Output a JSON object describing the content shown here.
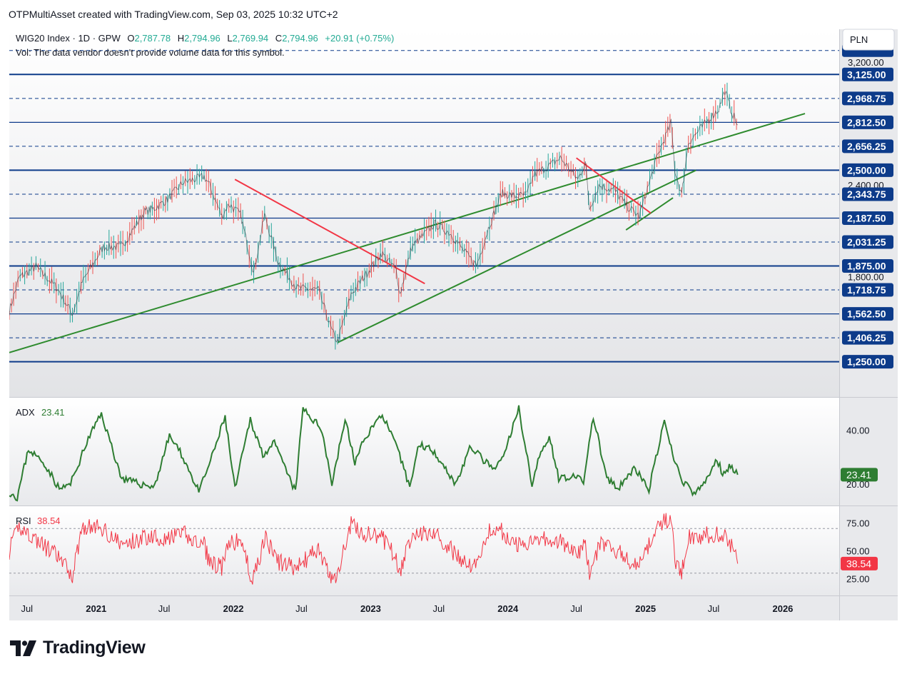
{
  "header": {
    "text": "OTPMultiAsset created with TradingView.com, Sep 03, 2025 10:32 UTC+2"
  },
  "brand": {
    "name": "TradingView"
  },
  "colors": {
    "hline": "#0d3b8a",
    "trend_green": "#2e8b2e",
    "trend_red": "#f23645",
    "adx": "#2e7d32",
    "rsi": "#f23645",
    "axis_text": "#131722"
  },
  "main_pane": {
    "title": {
      "symbol": "WIG20 Index",
      "interval": "1D",
      "exchange": "GPW"
    },
    "ohlc": [
      {
        "k": "O",
        "v": "2,787.78"
      },
      {
        "k": "H",
        "v": "2,794.96"
      },
      {
        "k": "L",
        "v": "2,769.94"
      },
      {
        "k": "C",
        "v": "2,794.96"
      }
    ],
    "change": "+20.91 (+0.75%)",
    "volume_note": "Vol: The data vendor doesn't provide volume data for this symbol.",
    "currency": "PLN",
    "price_levels": [
      {
        "label": "3,125.00",
        "value": 3125,
        "style": "solid"
      },
      {
        "label": "2,968.75",
        "value": 2968.75,
        "style": "dashed"
      },
      {
        "label": "2,812.50",
        "value": 2812.5,
        "style": "solid"
      },
      {
        "label": "2,656.25",
        "value": 2656.25,
        "style": "dashed"
      },
      {
        "label": "2,500.00",
        "value": 2500,
        "style": "solid"
      },
      {
        "label": "2,343.75",
        "value": 2343.75,
        "style": "dashed"
      },
      {
        "label": "2,187.50",
        "value": 2187.5,
        "style": "solid"
      },
      {
        "label": "2,031.25",
        "value": 2031.25,
        "style": "dashed"
      },
      {
        "label": "1,875.00",
        "value": 1875,
        "style": "solid"
      },
      {
        "label": "1,718.75",
        "value": 1718.75,
        "style": "dashed"
      },
      {
        "label": "1,562.50",
        "value": 1562.5,
        "style": "solid"
      },
      {
        "label": "1,406.25",
        "value": 1406.25,
        "style": "dashed"
      },
      {
        "label": "1,250.00",
        "value": 1250,
        "style": "solid"
      }
    ],
    "price_ticks": [
      {
        "label": "3,200.00",
        "value": 3200
      },
      {
        "label": "2,400.00",
        "value": 2400
      },
      {
        "label": "1,800.00",
        "value": 1800
      }
    ],
    "ylim": [
      1020,
      3420
    ],
    "top_level": {
      "value": 3281.25
    }
  },
  "chart_data": [
    {
      "type": "line",
      "title": "WIG20 Index · 1D · GPW",
      "ylabel": "PLN",
      "x_range": [
        "2020-05-15",
        "2026-05-31"
      ],
      "series": [
        {
          "name": "WIG20 Index",
          "x": [
            "2020-05-15",
            "2020-06-10",
            "2020-07-25",
            "2020-09-20",
            "2020-10-30",
            "2020-11-25",
            "2021-01-20",
            "2021-03-10",
            "2021-05-10",
            "2021-06-05",
            "2021-07-10",
            "2021-08-20",
            "2021-09-20",
            "2021-10-15",
            "2021-10-30",
            "2021-12-01",
            "2021-12-20",
            "2022-01-20",
            "2022-02-15",
            "2022-02-24",
            "2022-03-25",
            "2022-04-30",
            "2022-06-20",
            "2022-08-15",
            "2022-09-20",
            "2022-10-05",
            "2022-11-10",
            "2022-12-10",
            "2023-01-30",
            "2023-03-10",
            "2023-03-20",
            "2023-04-20",
            "2023-06-20",
            "2023-07-31",
            "2023-09-10",
            "2023-10-10",
            "2023-11-10",
            "2023-12-15",
            "2024-01-20",
            "2024-02-20",
            "2024-03-10",
            "2024-04-20",
            "2024-05-20",
            "2024-07-05",
            "2024-07-25",
            "2024-08-05",
            "2024-08-30",
            "2024-10-10",
            "2024-11-15",
            "2024-12-15",
            "2025-01-31",
            "2025-03-10",
            "2025-03-20",
            "2025-04-07",
            "2025-04-25",
            "2025-06-10",
            "2025-07-15",
            "2025-07-31",
            "2025-08-15",
            "2025-09-03"
          ],
          "values": [
            1580,
            1800,
            1870,
            1730,
            1560,
            1770,
            2000,
            2000,
            2230,
            2250,
            2310,
            2420,
            2440,
            2460,
            2400,
            2200,
            2280,
            2210,
            1930,
            1830,
            2210,
            1900,
            1730,
            1720,
            1450,
            1380,
            1690,
            1790,
            1960,
            1850,
            1690,
            2000,
            2150,
            2090,
            1960,
            1880,
            2120,
            2350,
            2330,
            2340,
            2470,
            2530,
            2580,
            2440,
            2550,
            2250,
            2400,
            2370,
            2260,
            2200,
            2580,
            2810,
            2500,
            2340,
            2680,
            2810,
            2900,
            3020,
            2900,
            2795
          ]
        }
      ],
      "trendlines": [
        {
          "color": "green",
          "points": [
            [
              "2020-05-15",
              1310
            ],
            [
              "2026-03-01",
              2870
            ]
          ]
        },
        {
          "color": "green",
          "points": [
            [
              "2022-10-05",
              1375
            ],
            [
              "2025-05-15",
              2500
            ]
          ]
        },
        {
          "color": "green",
          "points": [
            [
              "2024-11-10",
              2110
            ],
            [
              "2025-03-15",
              2320
            ]
          ]
        },
        {
          "color": "red",
          "points": [
            [
              "2022-01-05",
              2440
            ],
            [
              "2023-05-25",
              1760
            ]
          ]
        },
        {
          "color": "red",
          "points": [
            [
              "2024-07-01",
              2580
            ],
            [
              "2025-01-15",
              2220
            ]
          ]
        }
      ]
    },
    {
      "type": "line",
      "title": "ADX",
      "current_value": "23.41",
      "ylim": [
        12,
        52
      ],
      "ticks": [
        {
          "label": "40.00",
          "value": 40
        },
        {
          "label": "20.00",
          "value": 20
        }
      ],
      "series": [
        {
          "name": "ADX",
          "x": [
            "2020-05-15",
            "2020-06-05",
            "2020-07-05",
            "2020-08-20",
            "2020-09-25",
            "2020-10-25",
            "2020-12-15",
            "2021-01-15",
            "2021-03-10",
            "2021-04-25",
            "2021-06-05",
            "2021-07-15",
            "2021-08-20",
            "2021-10-01",
            "2021-11-05",
            "2021-12-10",
            "2022-01-05",
            "2022-02-15",
            "2022-03-20",
            "2022-04-20",
            "2022-06-15",
            "2022-07-05",
            "2022-08-25",
            "2022-09-20",
            "2022-10-25",
            "2022-11-20",
            "2022-12-20",
            "2023-02-01",
            "2023-03-15",
            "2023-04-15",
            "2023-05-10",
            "2023-06-20",
            "2023-08-15",
            "2023-09-25",
            "2023-10-20",
            "2023-11-25",
            "2023-12-20",
            "2024-01-30",
            "2024-03-05",
            "2024-03-25",
            "2024-04-20",
            "2024-05-15",
            "2024-06-15",
            "2024-07-20",
            "2024-08-15",
            "2024-09-20",
            "2024-10-20",
            "2024-12-01",
            "2025-01-10",
            "2025-02-20",
            "2025-03-10",
            "2025-04-05",
            "2025-05-10",
            "2025-06-05",
            "2025-07-10",
            "2025-07-25",
            "2025-08-15",
            "2025-09-03"
          ],
          "values": [
            17,
            15,
            33,
            27,
            18,
            20,
            38,
            46,
            22,
            20,
            19,
            38,
            30,
            17,
            30,
            45,
            18,
            44,
            31,
            35,
            17,
            48,
            40,
            20,
            44,
            28,
            38,
            46,
            32,
            19,
            35,
            32,
            20,
            34,
            30,
            25,
            30,
            48,
            20,
            30,
            38,
            22,
            23,
            21,
            45,
            22,
            18,
            26,
            18,
            43,
            33,
            22,
            16,
            20,
            29,
            24,
            27,
            23.41
          ]
        }
      ]
    },
    {
      "type": "line",
      "title": "RSI",
      "current_value": "38.54",
      "ylim": [
        10,
        90
      ],
      "ticks": [
        {
          "label": "75.00",
          "value": 75
        },
        {
          "label": "50.00",
          "value": 50
        },
        {
          "label": "25.00",
          "value": 25
        }
      ],
      "bands": [
        70,
        30
      ],
      "series": [
        {
          "name": "RSI",
          "x": [
            "2020-05-15",
            "2020-06-10",
            "2020-07-25",
            "2020-09-20",
            "2020-10-30",
            "2020-11-25",
            "2021-01-20",
            "2021-03-10",
            "2021-05-10",
            "2021-06-05",
            "2021-07-10",
            "2021-08-20",
            "2021-09-20",
            "2021-10-15",
            "2021-10-30",
            "2021-12-01",
            "2021-12-20",
            "2022-01-20",
            "2022-02-15",
            "2022-02-24",
            "2022-03-25",
            "2022-04-30",
            "2022-06-20",
            "2022-08-15",
            "2022-09-20",
            "2022-10-05",
            "2022-11-10",
            "2022-12-10",
            "2023-01-30",
            "2023-03-10",
            "2023-03-20",
            "2023-04-20",
            "2023-06-20",
            "2023-07-31",
            "2023-09-10",
            "2023-10-10",
            "2023-11-10",
            "2023-12-15",
            "2024-01-20",
            "2024-02-20",
            "2024-03-10",
            "2024-04-20",
            "2024-05-20",
            "2024-07-05",
            "2024-07-25",
            "2024-08-05",
            "2024-08-30",
            "2024-10-10",
            "2024-11-15",
            "2024-12-15",
            "2025-01-31",
            "2025-03-10",
            "2025-03-20",
            "2025-04-07",
            "2025-04-25",
            "2025-06-10",
            "2025-07-15",
            "2025-07-31",
            "2025-08-15",
            "2025-09-03"
          ],
          "values": [
            50,
            72,
            60,
            45,
            28,
            72,
            70,
            55,
            62,
            64,
            60,
            66,
            58,
            55,
            40,
            35,
            55,
            60,
            30,
            25,
            62,
            40,
            35,
            52,
            22,
            30,
            75,
            65,
            62,
            45,
            28,
            66,
            66,
            52,
            38,
            38,
            68,
            68,
            55,
            56,
            64,
            60,
            58,
            45,
            58,
            28,
            55,
            52,
            42,
            35,
            72,
            80,
            40,
            32,
            62,
            64,
            64,
            66,
            56,
            38.54
          ]
        }
      ]
    }
  ],
  "time_axis": {
    "ticks": [
      {
        "label": "Jul",
        "date": "2020-07-01"
      },
      {
        "label": "2021",
        "date": "2021-01-01"
      },
      {
        "label": "Jul",
        "date": "2021-07-01"
      },
      {
        "label": "2022",
        "date": "2022-01-01"
      },
      {
        "label": "Jul",
        "date": "2022-07-01"
      },
      {
        "label": "2023",
        "date": "2023-01-01"
      },
      {
        "label": "Jul",
        "date": "2023-07-01"
      },
      {
        "label": "2024",
        "date": "2024-01-01"
      },
      {
        "label": "Jul",
        "date": "2024-07-01"
      },
      {
        "label": "2025",
        "date": "2025-01-01"
      },
      {
        "label": "Jul",
        "date": "2025-07-01"
      },
      {
        "label": "2026",
        "date": "2026-01-01"
      }
    ]
  }
}
